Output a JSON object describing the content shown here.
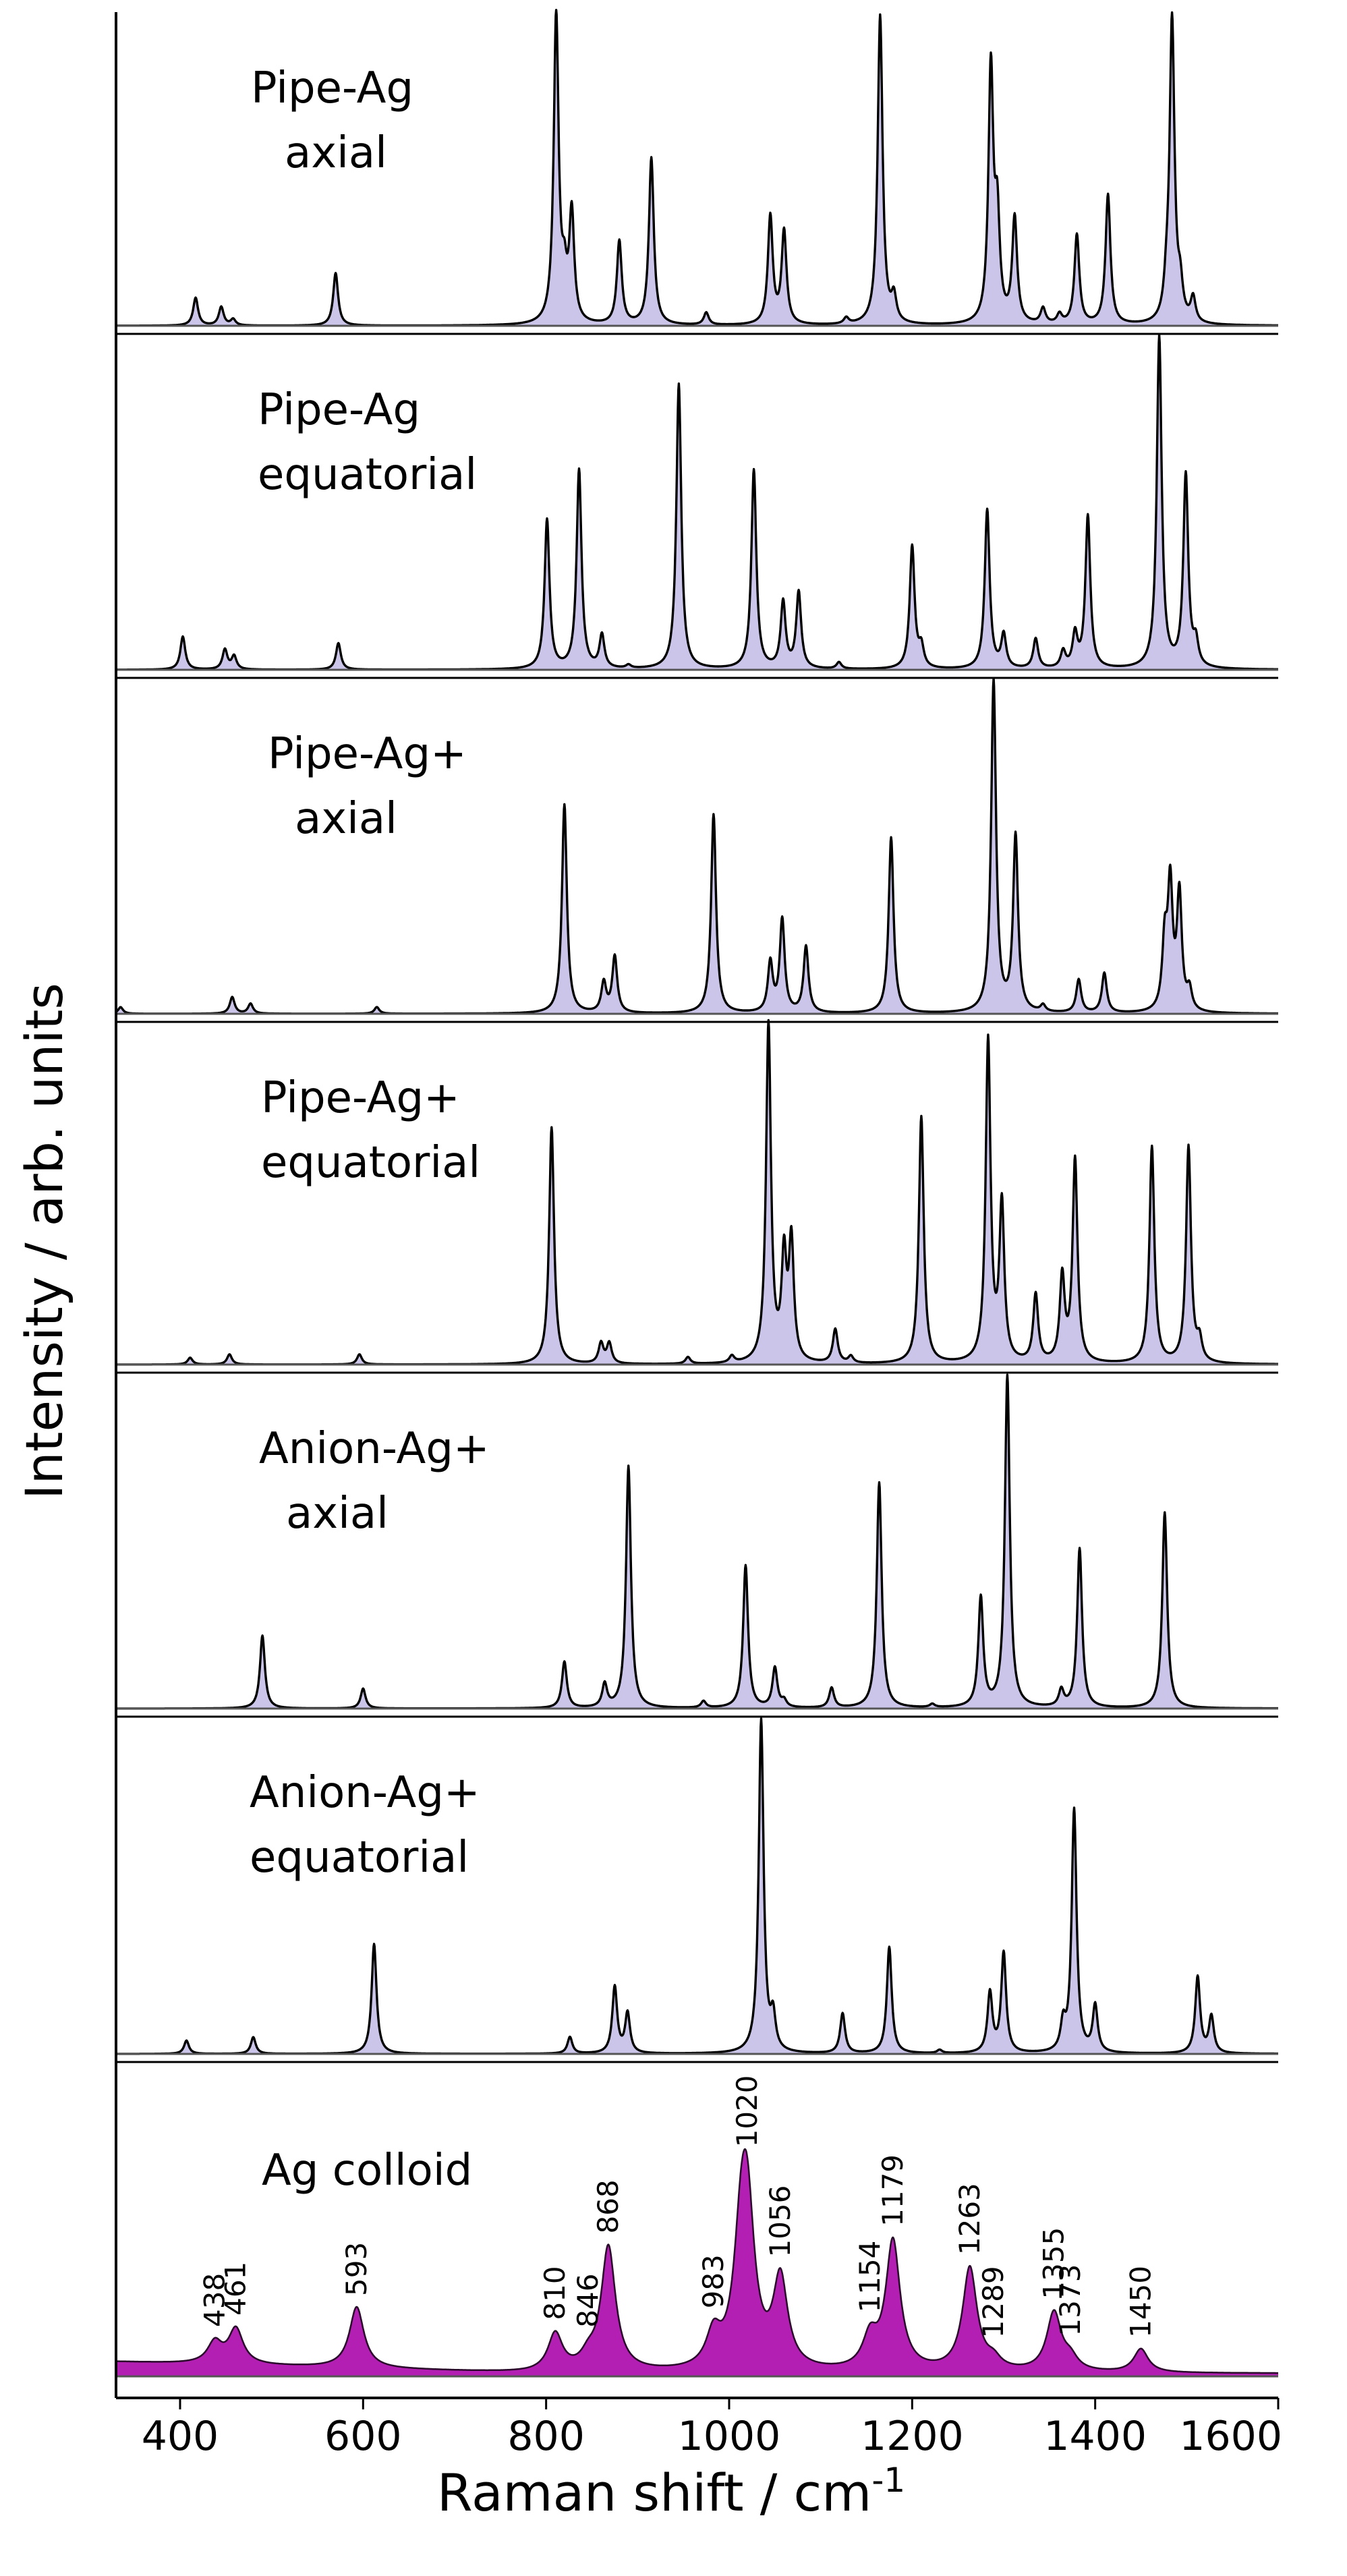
{
  "colors": {
    "theory_fill": "#ccc5ea",
    "theory_line": "#000000",
    "exp_fill": "#b21fb2",
    "exp_line": "#2a0a2a",
    "frame": "#000000"
  },
  "chart_data": {
    "type": "line",
    "stacked_panels": true,
    "xlim": [
      330,
      1600
    ],
    "xticks": [
      400,
      600,
      800,
      1000,
      1200,
      1400,
      1600
    ],
    "xlabel": "Raman shift / cm",
    "xlabel_superscript": "-1",
    "ylabel": "Intensity / arb. units",
    "series": [
      {
        "name": "Pipe-Ag axial",
        "label_lines": [
          "Pipe-Ag",
          "axial"
        ],
        "style": "theory",
        "peaks": [
          [
            417,
            0.09
          ],
          [
            445,
            0.06
          ],
          [
            458,
            0.02
          ],
          [
            570,
            0.17
          ],
          [
            811,
            1.0
          ],
          [
            828,
            0.35
          ],
          [
            820,
            0.12
          ],
          [
            880,
            0.27
          ],
          [
            915,
            0.54
          ],
          [
            975,
            0.04
          ],
          [
            1045,
            0.35
          ],
          [
            1060,
            0.3
          ],
          [
            1128,
            0.02
          ],
          [
            1165,
            1.0
          ],
          [
            1180,
            0.08
          ],
          [
            1286,
            0.82
          ],
          [
            1293,
            0.32
          ],
          [
            1312,
            0.34
          ],
          [
            1343,
            0.05
          ],
          [
            1361,
            0.03
          ],
          [
            1380,
            0.29
          ],
          [
            1414,
            0.42
          ],
          [
            1478,
            0.08
          ],
          [
            1484,
            0.98
          ],
          [
            1493,
            0.1
          ],
          [
            1507,
            0.08
          ]
        ]
      },
      {
        "name": "Pipe-Ag equatorial",
        "label_lines": [
          "Pipe-Ag",
          "equatorial"
        ],
        "style": "theory",
        "peaks": [
          [
            403,
            0.1
          ],
          [
            449,
            0.06
          ],
          [
            459,
            0.04
          ],
          [
            573,
            0.08
          ],
          [
            801,
            0.45
          ],
          [
            836,
            0.6
          ],
          [
            861,
            0.1
          ],
          [
            890,
            0.01
          ],
          [
            945,
            0.86
          ],
          [
            1027,
            0.6
          ],
          [
            1059,
            0.2
          ],
          [
            1076,
            0.23
          ],
          [
            1120,
            0.02
          ],
          [
            1200,
            0.37
          ],
          [
            1210,
            0.06
          ],
          [
            1282,
            0.48
          ],
          [
            1300,
            0.1
          ],
          [
            1335,
            0.09
          ],
          [
            1365,
            0.05
          ],
          [
            1378,
            0.1
          ],
          [
            1392,
            0.46
          ],
          [
            1470,
            1.0
          ],
          [
            1499,
            0.58
          ],
          [
            1510,
            0.07
          ]
        ]
      },
      {
        "name": "Pipe-Ag+ axial",
        "label_lines": [
          "Pipe-Ag+",
          "axial"
        ],
        "style": "theory",
        "peaks": [
          [
            335,
            0.02
          ],
          [
            457,
            0.05
          ],
          [
            477,
            0.03
          ],
          [
            615,
            0.02
          ],
          [
            820,
            0.63
          ],
          [
            863,
            0.09
          ],
          [
            875,
            0.17
          ],
          [
            983,
            0.6
          ],
          [
            1045,
            0.15
          ],
          [
            1058,
            0.28
          ],
          [
            1084,
            0.2
          ],
          [
            1177,
            0.53
          ],
          [
            1289,
            1.0
          ],
          [
            1313,
            0.53
          ],
          [
            1343,
            0.02
          ],
          [
            1382,
            0.1
          ],
          [
            1410,
            0.12
          ],
          [
            1476,
            0.2
          ],
          [
            1482,
            0.37
          ],
          [
            1492,
            0.35
          ],
          [
            1503,
            0.06
          ]
        ]
      },
      {
        "name": "Pipe-Ag+ equatorial",
        "label_lines": [
          "Pipe-Ag+",
          "equatorial"
        ],
        "style": "theory",
        "peaks": [
          [
            411,
            0.02
          ],
          [
            454,
            0.03
          ],
          [
            596,
            0.03
          ],
          [
            806,
            0.7
          ],
          [
            860,
            0.06
          ],
          [
            869,
            0.06
          ],
          [
            955,
            0.02
          ],
          [
            1003,
            0.02
          ],
          [
            1043,
            1.0
          ],
          [
            1060,
            0.3
          ],
          [
            1068,
            0.35
          ],
          [
            1116,
            0.1
          ],
          [
            1133,
            0.02
          ],
          [
            1210,
            0.73
          ],
          [
            1283,
            0.95
          ],
          [
            1298,
            0.46
          ],
          [
            1335,
            0.2
          ],
          [
            1364,
            0.25
          ],
          [
            1378,
            0.6
          ],
          [
            1462,
            0.64
          ],
          [
            1502,
            0.64
          ],
          [
            1514,
            0.06
          ]
        ]
      },
      {
        "name": "Anion-Ag+ axial",
        "label_lines": [
          "Anion-Ag+",
          "axial"
        ],
        "style": "theory",
        "peaks": [
          [
            490,
            0.22
          ],
          [
            600,
            0.06
          ],
          [
            820,
            0.14
          ],
          [
            864,
            0.07
          ],
          [
            890,
            0.73
          ],
          [
            972,
            0.02
          ],
          [
            1018,
            0.43
          ],
          [
            1050,
            0.12
          ],
          [
            1060,
            0.02
          ],
          [
            1112,
            0.06
          ],
          [
            1164,
            0.68
          ],
          [
            1222,
            0.01
          ],
          [
            1275,
            0.33
          ],
          [
            1304,
            1.0
          ],
          [
            1363,
            0.05
          ],
          [
            1383,
            0.48
          ],
          [
            1476,
            0.59
          ]
        ]
      },
      {
        "name": "Anion-Ag+ equatorial",
        "label_lines": [
          "Anion-Ag+",
          "equatorial"
        ],
        "style": "theory",
        "peaks": [
          [
            407,
            0.04
          ],
          [
            480,
            0.05
          ],
          [
            612,
            0.33
          ],
          [
            826,
            0.05
          ],
          [
            875,
            0.2
          ],
          [
            889,
            0.12
          ],
          [
            1035,
            1.0
          ],
          [
            1048,
            0.1
          ],
          [
            1124,
            0.12
          ],
          [
            1175,
            0.32
          ],
          [
            1230,
            0.01
          ],
          [
            1285,
            0.18
          ],
          [
            1300,
            0.3
          ],
          [
            1365,
            0.08
          ],
          [
            1377,
            0.73
          ],
          [
            1400,
            0.14
          ],
          [
            1512,
            0.23
          ],
          [
            1527,
            0.11
          ]
        ]
      },
      {
        "name": "Ag colloid",
        "label_lines": [
          "Ag colloid"
        ],
        "style": "experimental",
        "peak_labels": [
          438,
          461,
          593,
          810,
          846,
          868,
          983,
          1020,
          1056,
          1154,
          1179,
          1263,
          1289,
          1355,
          1373,
          1450
        ],
        "peaks": [
          [
            438,
            0.09
          ],
          [
            461,
            0.15
          ],
          [
            593,
            0.26
          ],
          [
            810,
            0.16
          ],
          [
            846,
            0.05
          ],
          [
            868,
            0.53
          ],
          [
            983,
            0.14
          ],
          [
            1013,
            0.46
          ],
          [
            1020,
            0.58
          ],
          [
            1056,
            0.38
          ],
          [
            1154,
            0.13
          ],
          [
            1179,
            0.55
          ],
          [
            1263,
            0.44
          ],
          [
            1289,
            0.04
          ],
          [
            1355,
            0.25
          ],
          [
            1373,
            0.05
          ],
          [
            1450,
            0.1
          ]
        ]
      }
    ]
  }
}
